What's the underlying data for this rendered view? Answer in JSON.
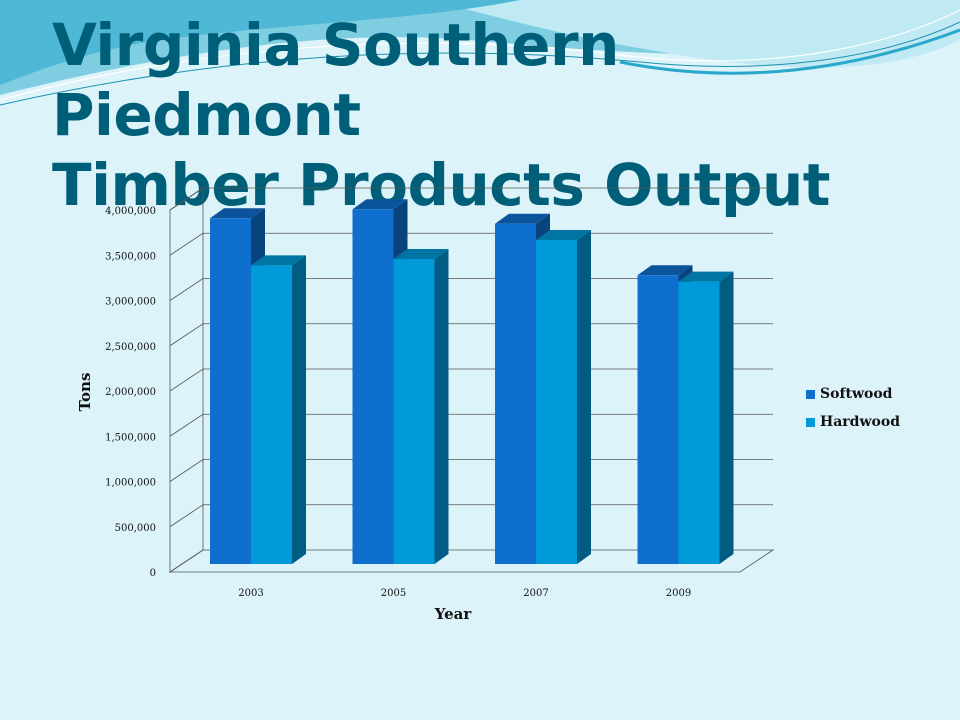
{
  "slide": {
    "title_line1": "Virginia Southern Piedmont",
    "title_line2": "Timber Products Output"
  },
  "chart_data": {
    "type": "bar",
    "title": "",
    "xlabel": "Year",
    "ylabel": "Tons",
    "categories": [
      "2003",
      "2005",
      "2007",
      "2009"
    ],
    "series": [
      {
        "name": "Softwood",
        "values": [
          3820000,
          3920000,
          3760000,
          3190000
        ],
        "color": "#0f6fcf"
      },
      {
        "name": "Hardwood",
        "values": [
          3300000,
          3370000,
          3580000,
          3120000
        ],
        "color": "#009ad8"
      }
    ],
    "ylim": [
      0,
      4000000
    ],
    "yticks": [
      {
        "value": 0,
        "label": "0"
      },
      {
        "value": 500000,
        "label": "500,000"
      },
      {
        "value": 1000000,
        "label": "1,000,000"
      },
      {
        "value": 1500000,
        "label": "1,500,000"
      },
      {
        "value": 2000000,
        "label": "2,000,000"
      },
      {
        "value": 2500000,
        "label": "2,500,000"
      },
      {
        "value": 3000000,
        "label": "3,000,000"
      },
      {
        "value": 3500000,
        "label": "3,500,000"
      },
      {
        "value": 4000000,
        "label": "4,000,000"
      }
    ],
    "grid": true,
    "legend": "right",
    "style": "3d-column"
  }
}
